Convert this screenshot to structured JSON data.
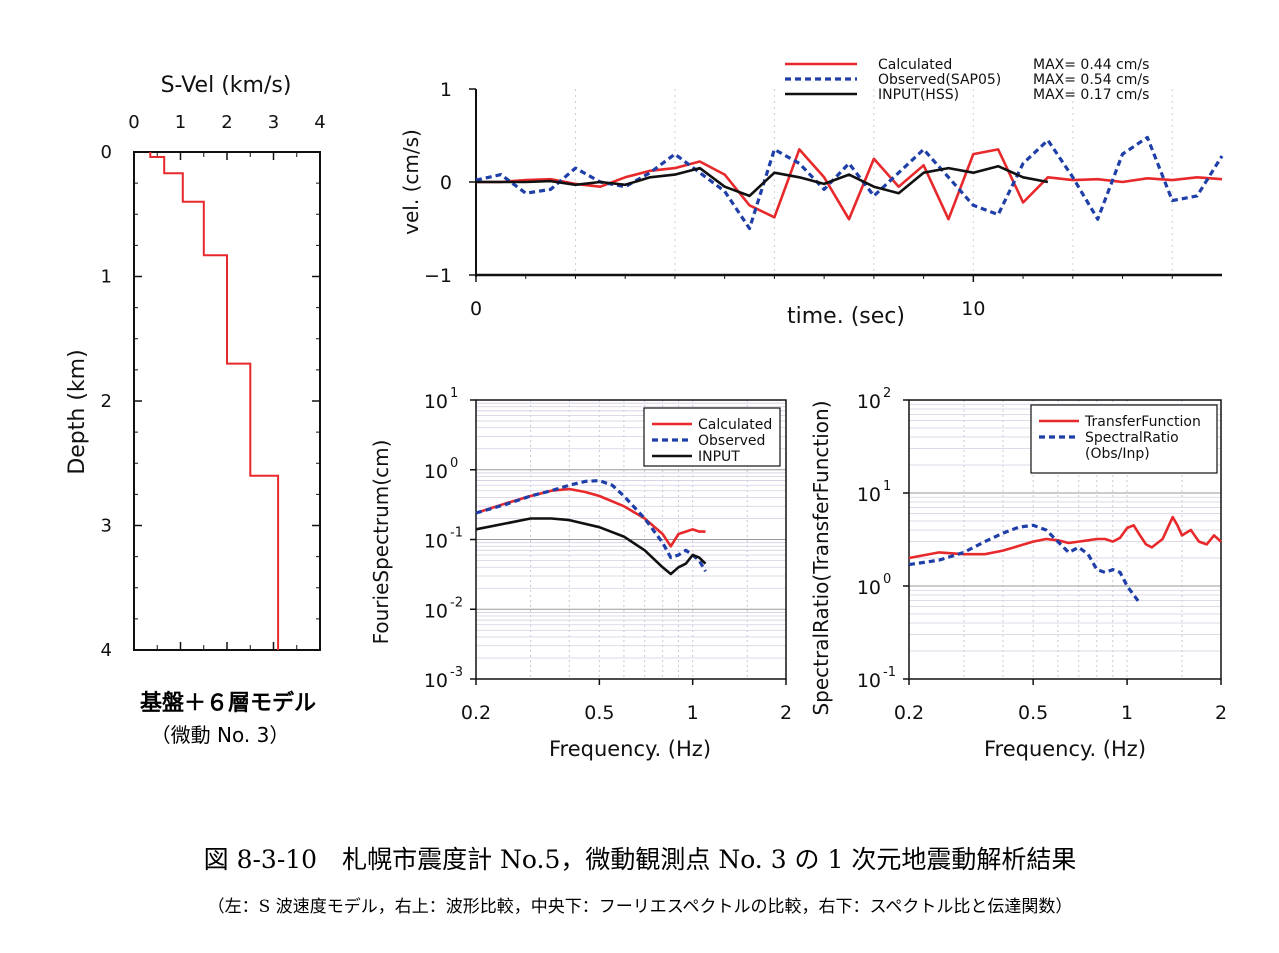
{
  "caption": {
    "title": "図 8-3-10　札幌市震度計 No.5，微動観測点 No. 3 の 1 次元地震動解析結果",
    "subtitle": "（左：S 波速度モデル，右上：波形比較，中央下：フーリエスペクトルの比較，右下：スペクトル比と伝達関数）"
  },
  "colors": {
    "calculated": "#e8292b",
    "observed": "#1f3fa8",
    "input": "#111111"
  },
  "chart_data": [
    {
      "id": "velocity_profile",
      "type": "line",
      "title": "S-Vel (km/s)",
      "xlabel": "S-Vel (km/s)",
      "ylabel": "Depth (km)",
      "xlim": [
        0,
        4
      ],
      "ylim": [
        0,
        4
      ],
      "y_inverted": true,
      "x_ticks": [
        "0",
        "1",
        "2",
        "3",
        "4"
      ],
      "y_ticks": [
        "0",
        "1",
        "2",
        "3",
        "4"
      ],
      "caption_lines": [
        "基盤＋６層モデル",
        "（微動 No. 3）"
      ],
      "series": [
        {
          "color": "#e8292b",
          "x": [
            0.35,
            0.35,
            0.65,
            0.65,
            1.05,
            1.05,
            1.5,
            1.5,
            2.0,
            2.0,
            2.5,
            2.5,
            3.1,
            3.1
          ],
          "y": [
            0.0,
            0.04,
            0.04,
            0.17,
            0.17,
            0.4,
            0.4,
            0.83,
            0.83,
            1.7,
            1.7,
            2.6,
            2.6,
            4.0
          ]
        }
      ]
    },
    {
      "id": "waveform",
      "type": "line",
      "xlabel": "time. (sec)",
      "ylabel": "vel. (cm/s)",
      "xlim": [
        0,
        15
      ],
      "ylim": [
        -1,
        1
      ],
      "x_ticks": [
        "0",
        "10"
      ],
      "y_ticks": [
        "1",
        "0",
        "−1"
      ],
      "legend": [
        {
          "name": "Calculated",
          "max": "MAX= 0.44 cm/s"
        },
        {
          "name": "Observed(SAP05)",
          "max": "MAX= 0.54 cm/s"
        },
        {
          "name": "INPUT(HSS)",
          "max": "MAX= 0.17 cm/s"
        }
      ],
      "series": [
        {
          "name": "Calculated",
          "color": "#e8292b",
          "x": [
            0,
            0.5,
            1,
            1.5,
            2,
            2.5,
            3,
            3.5,
            4,
            4.5,
            5,
            5.5,
            6,
            6.5,
            7,
            7.5,
            8,
            8.5,
            9,
            9.5,
            10,
            10.5,
            11,
            11.5,
            12,
            12.5,
            13,
            13.5,
            14,
            14.5,
            15
          ],
          "y": [
            0,
            0,
            0.02,
            0.03,
            -0.02,
            -0.05,
            0.05,
            0.12,
            0.15,
            0.22,
            0.08,
            -0.25,
            -0.38,
            0.35,
            0.05,
            -0.4,
            0.25,
            -0.05,
            0.18,
            -0.4,
            0.3,
            0.35,
            -0.22,
            0.05,
            0.02,
            0.03,
            0.0,
            0.04,
            0.02,
            0.05,
            0.03
          ]
        },
        {
          "name": "Observed(SAP05)",
          "color": "#1f3fa8",
          "x": [
            0,
            0.5,
            1,
            1.5,
            2,
            2.5,
            3,
            3.5,
            4,
            4.5,
            5,
            5.5,
            6,
            6.5,
            7,
            7.5,
            8,
            8.5,
            9,
            9.5,
            10,
            10.5,
            11,
            11.5,
            12,
            12.5,
            13,
            13.5,
            14,
            14.5,
            15
          ],
          "y": [
            0.02,
            0.08,
            -0.12,
            -0.08,
            0.15,
            0.0,
            -0.05,
            0.1,
            0.3,
            0.1,
            -0.1,
            -0.5,
            0.35,
            0.2,
            -0.08,
            0.2,
            -0.15,
            0.1,
            0.35,
            0.05,
            -0.25,
            -0.35,
            0.2,
            0.45,
            0.05,
            -0.4,
            0.3,
            0.48,
            -0.2,
            -0.15,
            0.28
          ]
        },
        {
          "name": "INPUT(HSS)",
          "color": "#111111",
          "x": [
            0,
            0.5,
            1,
            1.5,
            2,
            2.5,
            3,
            3.5,
            4,
            4.5,
            5,
            5.5,
            6,
            6.5,
            7,
            7.5,
            8,
            8.5,
            9,
            9.5,
            10,
            10.5,
            11,
            11.5
          ],
          "y": [
            0,
            0,
            0,
            0.01,
            -0.03,
            0.0,
            -0.03,
            0.05,
            0.08,
            0.15,
            -0.05,
            -0.15,
            0.1,
            0.05,
            -0.02,
            0.08,
            -0.05,
            -0.12,
            0.1,
            0.15,
            0.1,
            0.17,
            0.05,
            0.0
          ]
        }
      ]
    },
    {
      "id": "fourier_spectrum",
      "type": "line",
      "xlabel": "Frequency. (Hz)",
      "ylabel": "FourieSpectrum(cm)",
      "x_scale": "log",
      "y_scale": "log",
      "xlim": [
        0.2,
        2
      ],
      "ylim": [
        0.001,
        10
      ],
      "x_ticks": [
        "0.2",
        "0.5",
        "1",
        "2"
      ],
      "y_ticks": [
        {
          "base": "10",
          "exp": "1"
        },
        {
          "base": "10",
          "exp": "0"
        },
        {
          "base": "10",
          "exp": "-1"
        },
        {
          "base": "10",
          "exp": "-2"
        },
        {
          "base": "10",
          "exp": "-3"
        }
      ],
      "legend": [
        "Calculated",
        "Observed",
        "INPUT"
      ],
      "series": [
        {
          "name": "Calculated",
          "color": "#e8292b",
          "x": [
            0.2,
            0.25,
            0.3,
            0.35,
            0.4,
            0.45,
            0.5,
            0.6,
            0.7,
            0.8,
            0.85,
            0.9,
            0.95,
            1.0,
            1.05,
            1.1
          ],
          "y": [
            0.24,
            0.33,
            0.42,
            0.5,
            0.53,
            0.48,
            0.42,
            0.3,
            0.2,
            0.12,
            0.08,
            0.12,
            0.13,
            0.14,
            0.13,
            0.13
          ]
        },
        {
          "name": "Observed",
          "color": "#1f3fa8",
          "x": [
            0.2,
            0.25,
            0.3,
            0.35,
            0.4,
            0.45,
            0.5,
            0.55,
            0.6,
            0.7,
            0.8,
            0.85,
            0.9,
            0.95,
            1.0,
            1.05,
            1.1
          ],
          "y": [
            0.24,
            0.32,
            0.42,
            0.5,
            0.6,
            0.68,
            0.7,
            0.6,
            0.42,
            0.2,
            0.09,
            0.055,
            0.06,
            0.07,
            0.06,
            0.05,
            0.035
          ]
        },
        {
          "name": "INPUT",
          "color": "#111111",
          "x": [
            0.2,
            0.25,
            0.3,
            0.35,
            0.4,
            0.5,
            0.6,
            0.7,
            0.8,
            0.85,
            0.9,
            0.95,
            1.0,
            1.05,
            1.1
          ],
          "y": [
            0.14,
            0.17,
            0.2,
            0.2,
            0.19,
            0.15,
            0.11,
            0.07,
            0.04,
            0.032,
            0.04,
            0.045,
            0.06,
            0.055,
            0.045
          ]
        }
      ]
    },
    {
      "id": "spectral_ratio",
      "type": "line",
      "xlabel": "Frequency. (Hz)",
      "ylabel": "SpectralRatio(TransferFunction)",
      "x_scale": "log",
      "y_scale": "log",
      "xlim": [
        0.2,
        2
      ],
      "ylim": [
        0.1,
        100
      ],
      "x_ticks": [
        "0.2",
        "0.5",
        "1",
        "2"
      ],
      "y_ticks": [
        {
          "base": "10",
          "exp": "2"
        },
        {
          "base": "10",
          "exp": "1"
        },
        {
          "base": "10",
          "exp": "0"
        },
        {
          "base": "10",
          "exp": "-1"
        }
      ],
      "legend": [
        "TransferFunction",
        "SpectralRatio",
        "(Obs/Inp)"
      ],
      "series": [
        {
          "name": "TransferFunction",
          "color": "#e8292b",
          "x": [
            0.2,
            0.25,
            0.3,
            0.35,
            0.4,
            0.45,
            0.5,
            0.55,
            0.6,
            0.65,
            0.7,
            0.75,
            0.8,
            0.85,
            0.9,
            0.95,
            1.0,
            1.05,
            1.1,
            1.15,
            1.2,
            1.3,
            1.4,
            1.45,
            1.5,
            1.6,
            1.7,
            1.8,
            1.9,
            2.0
          ],
          "y": [
            2.0,
            2.3,
            2.2,
            2.2,
            2.4,
            2.7,
            3.0,
            3.2,
            3.1,
            2.9,
            3.0,
            3.1,
            3.2,
            3.2,
            3.0,
            3.3,
            4.2,
            4.5,
            3.5,
            2.8,
            2.6,
            3.2,
            5.5,
            4.5,
            3.5,
            4.0,
            3.0,
            2.8,
            3.5,
            3.0
          ]
        },
        {
          "name": "SpectralRatio",
          "color": "#1f3fa8",
          "x": [
            0.2,
            0.25,
            0.3,
            0.35,
            0.4,
            0.45,
            0.5,
            0.55,
            0.6,
            0.65,
            0.7,
            0.75,
            0.8,
            0.85,
            0.9,
            0.95,
            1.0,
            1.05,
            1.1
          ],
          "y": [
            1.7,
            1.9,
            2.3,
            3.0,
            3.7,
            4.3,
            4.5,
            4.0,
            3.0,
            2.3,
            2.6,
            2.2,
            1.5,
            1.4,
            1.5,
            1.4,
            1.0,
            0.8,
            0.65
          ]
        }
      ]
    }
  ]
}
